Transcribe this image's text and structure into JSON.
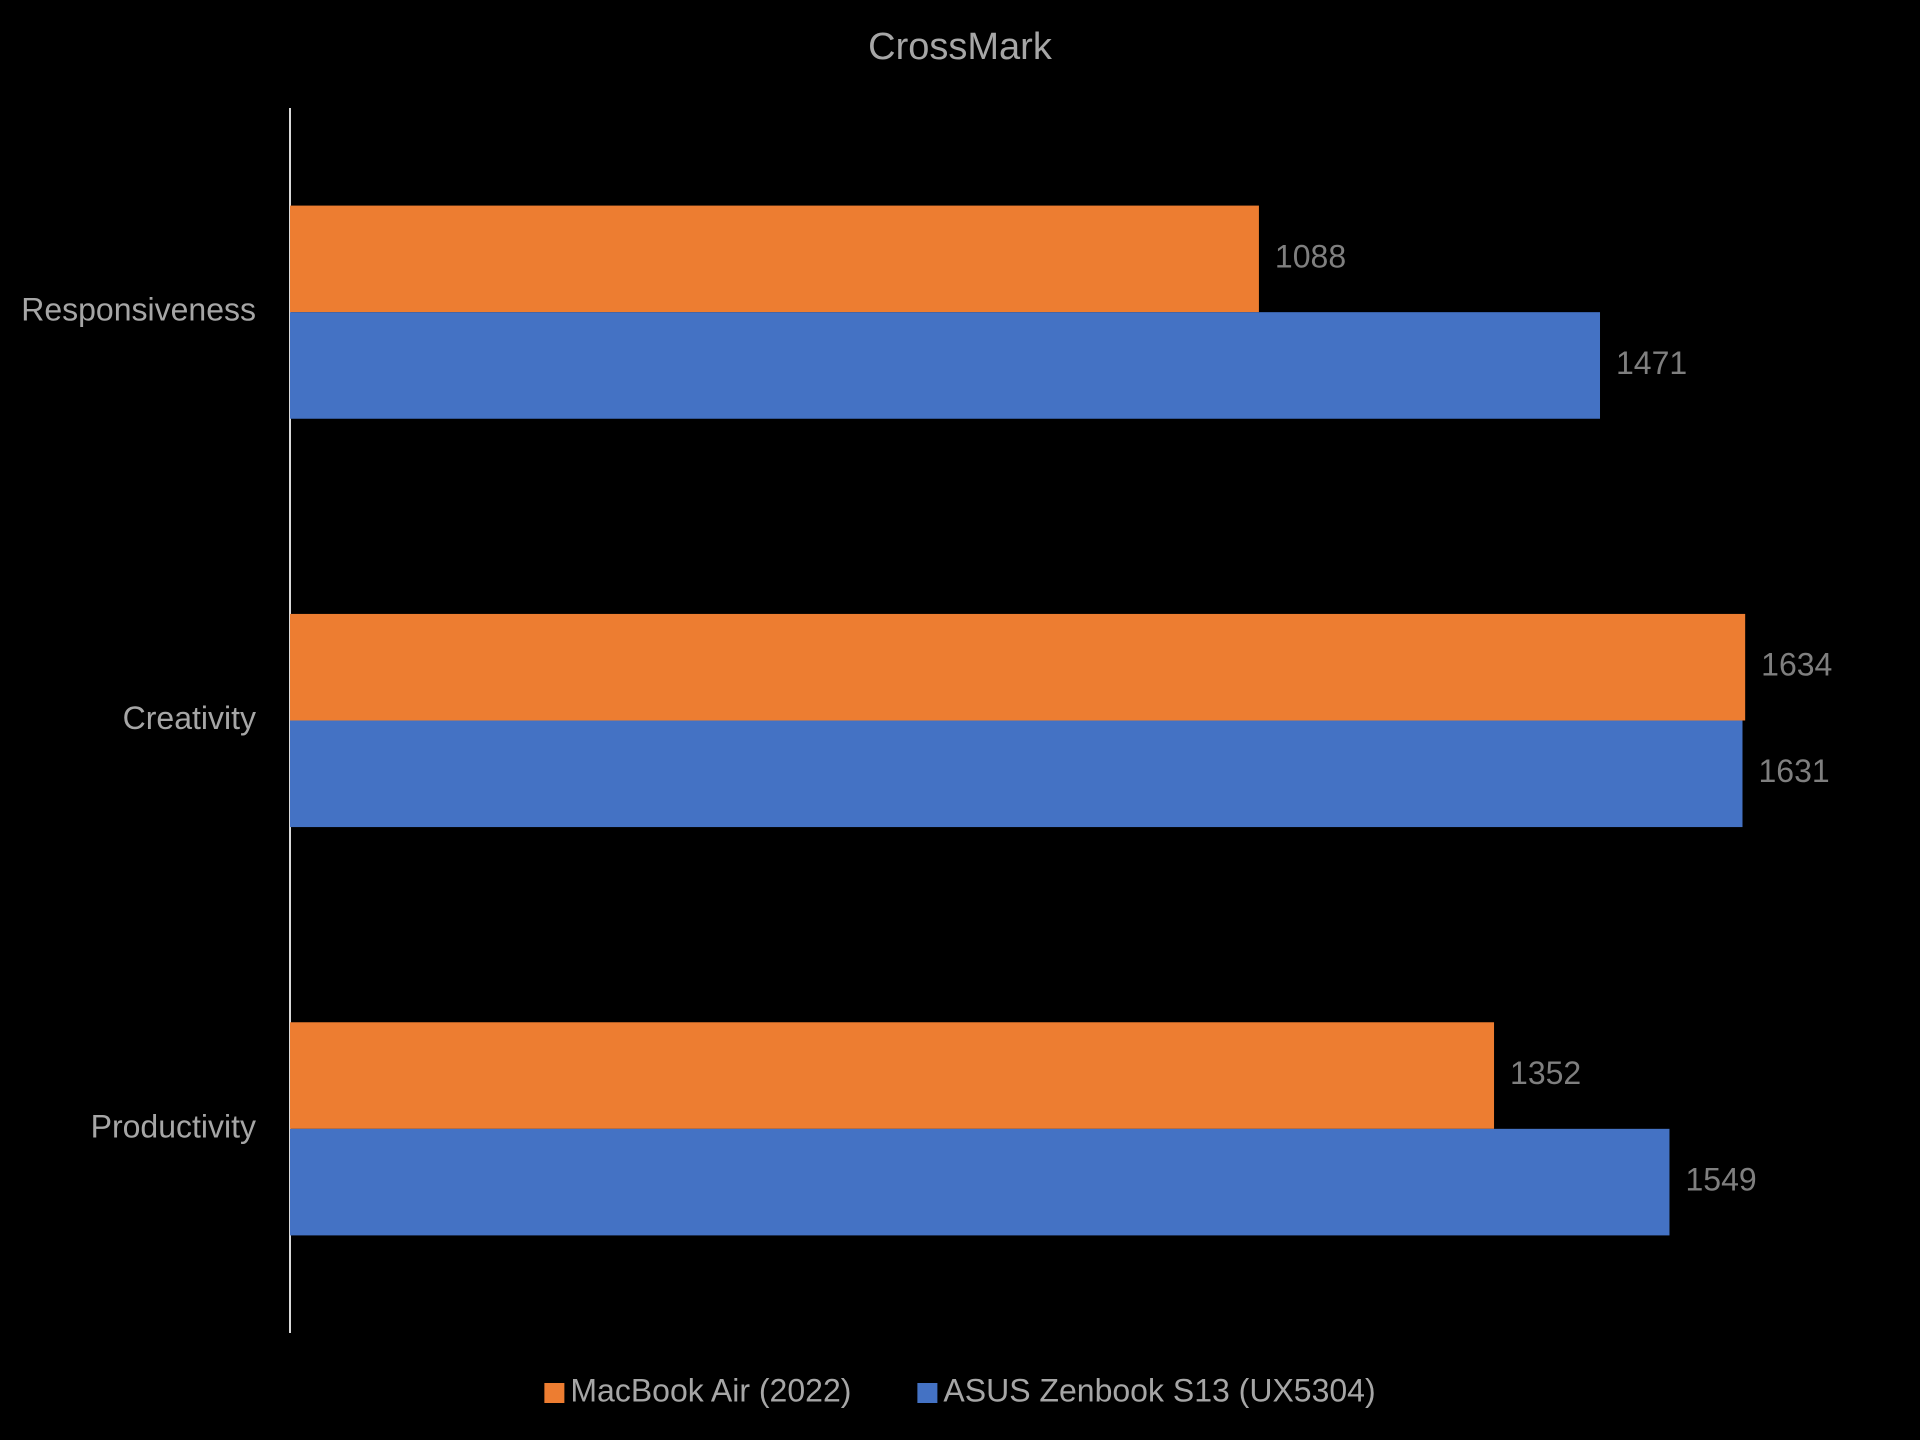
{
  "chart_data": {
    "type": "hbar",
    "title": "CrossMark",
    "categories": [
      "Responsiveness",
      "Creativity",
      "Productivity"
    ],
    "series": [
      {
        "name": "MacBook Air (2022)",
        "color": "#ed7d31",
        "values": [
          1088,
          1634,
          1352
        ]
      },
      {
        "name": "ASUS Zenbook S13 (UX5304)",
        "color": "#4472c4",
        "values": [
          1471,
          1631,
          1549
        ]
      }
    ],
    "xlim": [
      0,
      1800
    ],
    "grid": false,
    "legend": "bottom"
  }
}
